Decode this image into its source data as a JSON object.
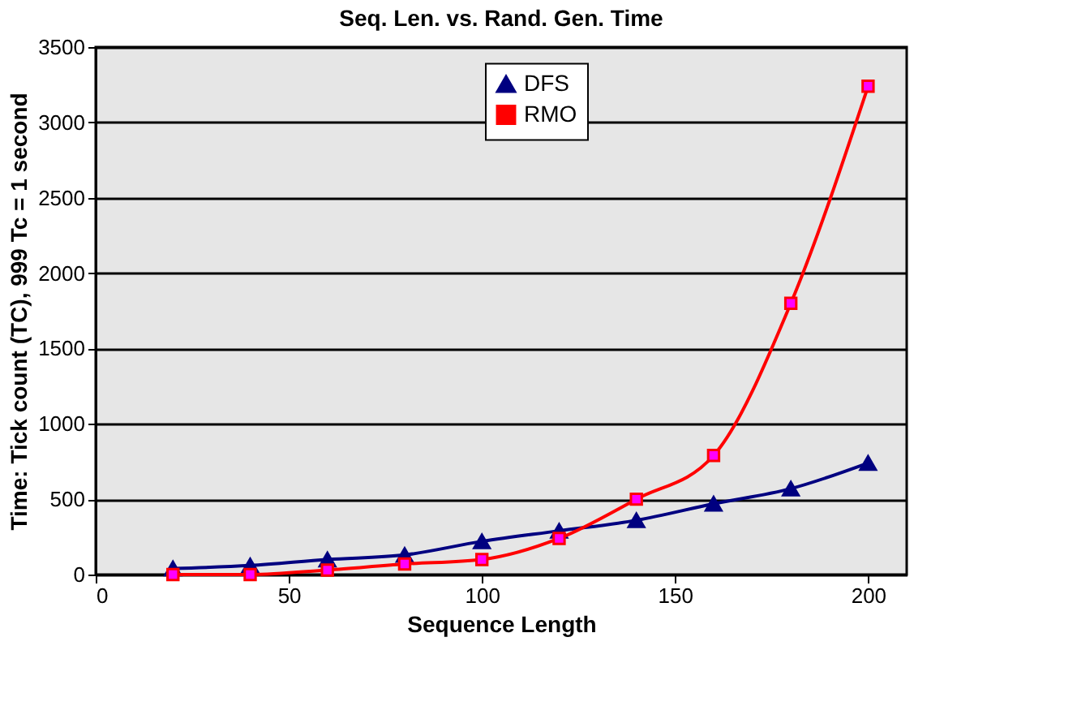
{
  "chart_data": {
    "type": "line",
    "title": "Seq. Len. vs. Rand. Gen. Time",
    "xlabel": "Sequence Length",
    "ylabel": "Time: Tick count (TC), 999 Tc = 1 second",
    "x": [
      20,
      40,
      60,
      80,
      100,
      120,
      140,
      160,
      180,
      200
    ],
    "series": [
      {
        "name": "DFS",
        "color": "#000080",
        "marker": "triangle",
        "values": [
          40,
          60,
          100,
          130,
          220,
          290,
          360,
          470,
          570,
          740
        ]
      },
      {
        "name": "RMO",
        "color": "#ff0000",
        "marker": "square",
        "values": [
          0,
          0,
          30,
          70,
          100,
          240,
          500,
          790,
          1800,
          3240
        ]
      }
    ],
    "xlim": [
      0,
      210
    ],
    "xticks": [
      0,
      50,
      100,
      150,
      200
    ],
    "ylim": [
      0,
      3500
    ],
    "yticks": [
      0,
      500,
      1000,
      1500,
      2000,
      2500,
      3000,
      3500
    ],
    "grid": "y",
    "legend": "top"
  }
}
